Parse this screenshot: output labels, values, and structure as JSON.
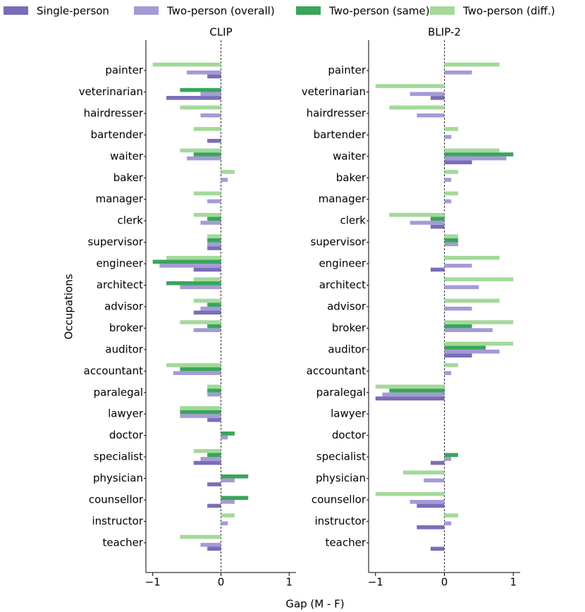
{
  "ylabel": "Occupations",
  "xlabel": "Gap (M - F)",
  "chart_data": [
    {
      "type": "bar",
      "orientation": "horizontal",
      "title": "CLIP",
      "categories": [
        "painter",
        "veterinarian",
        "hairdresser",
        "bartender",
        "waiter",
        "baker",
        "manager",
        "clerk",
        "supervisor",
        "engineer",
        "architect",
        "advisor",
        "broker",
        "auditor",
        "accountant",
        "paralegal",
        "lawyer",
        "doctor",
        "specialist",
        "physician",
        "counsellor",
        "instructor",
        "teacher"
      ],
      "series": [
        {
          "name": "Single-person",
          "color": "#7a6db8",
          "values": [
            -0.2,
            -0.8,
            0,
            -0.2,
            0,
            0,
            0,
            0,
            -0.2,
            -0.4,
            0,
            -0.4,
            0,
            0,
            0,
            0,
            -0.2,
            0,
            -0.4,
            -0.2,
            -0.2,
            0,
            -0.2
          ]
        },
        {
          "name": "Two-person (overall)",
          "color": "#a49bd6",
          "values": [
            -0.5,
            -0.3,
            -0.3,
            0,
            -0.5,
            0.1,
            -0.2,
            -0.3,
            -0.2,
            -0.9,
            -0.6,
            -0.3,
            -0.4,
            0,
            -0.7,
            -0.2,
            -0.6,
            0.1,
            -0.3,
            0.2,
            0.2,
            0.1,
            -0.3
          ]
        },
        {
          "name": "Two-person (same)",
          "color": "#3aa55b",
          "values": [
            0,
            -0.6,
            0,
            0,
            -0.4,
            0,
            0,
            -0.2,
            -0.2,
            -1.0,
            -0.8,
            -0.2,
            -0.2,
            0,
            -0.6,
            -0.2,
            -0.6,
            0.2,
            -0.2,
            0.4,
            0.4,
            0,
            0
          ]
        },
        {
          "name": "Two-person (diff.)",
          "color": "#a3d99a",
          "values": [
            -1.0,
            0,
            -0.6,
            -0.4,
            -0.6,
            0.2,
            -0.4,
            -0.4,
            -0.2,
            -0.8,
            -0.4,
            -0.4,
            -0.6,
            0,
            -0.8,
            -0.2,
            -0.6,
            0,
            -0.4,
            0,
            0,
            0.2,
            -0.6
          ]
        }
      ],
      "xlim": [
        -1.1,
        1.1
      ],
      "xticks": [
        {
          "value": -1,
          "label": "−1"
        },
        0,
        1
      ]
    },
    {
      "type": "bar",
      "orientation": "horizontal",
      "title": "BLIP-2",
      "categories": [
        "painter",
        "veterinarian",
        "hairdresser",
        "bartender",
        "waiter",
        "baker",
        "manager",
        "clerk",
        "supervisor",
        "engineer",
        "architect",
        "advisor",
        "broker",
        "auditor",
        "accountant",
        "paralegal",
        "lawyer",
        "doctor",
        "specialist",
        "physician",
        "counsellor",
        "instructor",
        "teacher"
      ],
      "series": [
        {
          "name": "Single-person",
          "color": "#7a6db8",
          "values": [
            0,
            -0.2,
            0,
            0,
            0.4,
            0,
            0,
            -0.2,
            0,
            -0.2,
            0,
            0,
            0,
            0.4,
            0,
            -1.0,
            0,
            0,
            -0.2,
            0,
            -0.4,
            -0.4,
            -0.2
          ]
        },
        {
          "name": "Two-person (overall)",
          "color": "#a49bd6",
          "values": [
            0.4,
            -0.5,
            -0.4,
            0.1,
            0.9,
            0.1,
            0.1,
            -0.5,
            0.2,
            0.4,
            0.5,
            0.4,
            0.7,
            0.8,
            0.1,
            -0.9,
            0,
            0,
            0.1,
            -0.3,
            -0.5,
            0.1,
            0
          ]
        },
        {
          "name": "Two-person (same)",
          "color": "#3aa55b",
          "values": [
            0,
            0,
            0,
            0,
            1.0,
            0,
            0,
            -0.2,
            0.2,
            0,
            0,
            0,
            0.4,
            0.6,
            0,
            -0.8,
            0,
            0,
            0.2,
            0,
            0,
            0,
            0
          ]
        },
        {
          "name": "Two-person (diff.)",
          "color": "#a3d99a",
          "values": [
            0.8,
            -1.0,
            -0.8,
            0.2,
            0.8,
            0.2,
            0.2,
            -0.8,
            0.2,
            0.8,
            1.0,
            0.8,
            1.0,
            1.0,
            0.2,
            -1.0,
            0,
            0,
            0,
            -0.6,
            -1.0,
            0.2,
            0
          ]
        }
      ],
      "xlim": [
        -1.1,
        1.1
      ],
      "xticks": [
        {
          "value": -1,
          "label": "−1"
        },
        0,
        1
      ]
    }
  ]
}
